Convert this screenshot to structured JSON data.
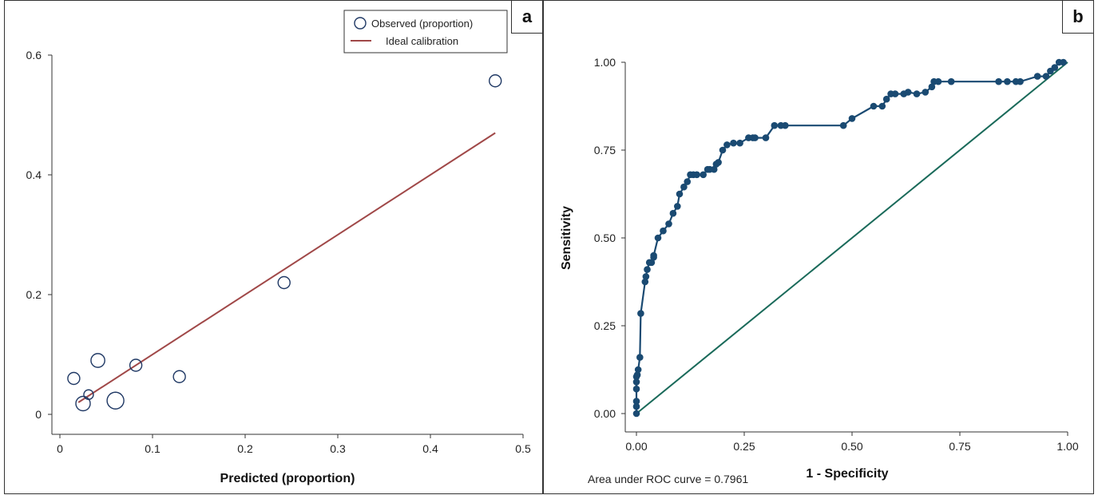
{
  "chart_data": [
    {
      "panel_label": "a",
      "type": "scatter",
      "title": "",
      "xlabel": "Predicted (proportion)",
      "ylabel": "",
      "xlim": [
        0,
        0.5
      ],
      "ylim": [
        0,
        0.6
      ],
      "x_ticks": [
        0,
        0.1,
        0.2,
        0.3,
        0.4,
        0.5
      ],
      "x_tick_labels": [
        "0",
        "0.1",
        "0.2",
        "0.3",
        "0.4",
        "0.5"
      ],
      "y_ticks": [
        0,
        0.2,
        0.4,
        0.6
      ],
      "y_tick_labels": [
        "0",
        "0.2",
        "0.4",
        "0.6"
      ],
      "grid": false,
      "legend": {
        "placement": "top-right",
        "entries": [
          "Observed (proportion)",
          "Ideal calibration"
        ]
      },
      "colors": {
        "marker": "#1f3864",
        "line": "#a04848"
      },
      "series": [
        {
          "name": "Observed (proportion)",
          "kind": "hollow-circle",
          "points": [
            {
              "x": 0.015,
              "y": 0.06,
              "size": 1.0
            },
            {
              "x": 0.025,
              "y": 0.018,
              "size": 1.2
            },
            {
              "x": 0.031,
              "y": 0.033,
              "size": 0.8
            },
            {
              "x": 0.041,
              "y": 0.09,
              "size": 1.15
            },
            {
              "x": 0.06,
              "y": 0.023,
              "size": 1.4
            },
            {
              "x": 0.082,
              "y": 0.082,
              "size": 1.0
            },
            {
              "x": 0.129,
              "y": 0.063,
              "size": 1.0
            },
            {
              "x": 0.242,
              "y": 0.22,
              "size": 1.0
            },
            {
              "x": 0.47,
              "y": 0.557,
              "size": 1.0
            }
          ]
        },
        {
          "name": "Ideal calibration",
          "kind": "line",
          "points": [
            {
              "x": 0.02,
              "y": 0.02
            },
            {
              "x": 0.47,
              "y": 0.47
            }
          ]
        }
      ]
    },
    {
      "panel_label": "b",
      "type": "line",
      "title": "",
      "xlabel": "1 - Specificity",
      "ylabel": "Sensitivity",
      "xlim": [
        0,
        1
      ],
      "ylim": [
        0,
        1
      ],
      "x_ticks": [
        0,
        0.25,
        0.5,
        0.75,
        1
      ],
      "x_tick_labels": [
        "0.00",
        "0.25",
        "0.50",
        "0.75",
        "1.00"
      ],
      "y_ticks": [
        0,
        0.25,
        0.5,
        0.75,
        1
      ],
      "y_tick_labels": [
        "0.00",
        "0.25",
        "0.50",
        "0.75",
        "1.00"
      ],
      "grid": false,
      "annotation": "Area under ROC curve = 0.7961",
      "colors": {
        "roc": "#1a4a72",
        "reference": "#1a6a5a"
      },
      "series": [
        {
          "kind": "roc",
          "x": [
            0.0,
            0.0,
            0.0,
            0.0,
            0.0,
            0.0,
            0.002,
            0.004,
            0.008,
            0.01,
            0.02,
            0.022,
            0.025,
            0.03,
            0.035,
            0.04,
            0.04,
            0.05,
            0.062,
            0.075,
            0.085,
            0.095,
            0.1,
            0.11,
            0.118,
            0.125,
            0.132,
            0.14,
            0.155,
            0.165,
            0.17,
            0.18,
            0.185,
            0.19,
            0.2,
            0.21,
            0.225,
            0.24,
            0.26,
            0.27,
            0.275,
            0.3,
            0.32,
            0.335,
            0.345,
            0.48,
            0.5,
            0.55,
            0.57,
            0.58,
            0.59,
            0.6,
            0.62,
            0.63,
            0.65,
            0.67,
            0.685,
            0.69,
            0.7,
            0.73,
            0.84,
            0.86,
            0.88,
            0.89,
            0.93,
            0.95,
            0.96,
            0.97,
            0.98,
            0.99
          ],
          "y": [
            0.0,
            0.02,
            0.035,
            0.07,
            0.09,
            0.105,
            0.11,
            0.125,
            0.16,
            0.285,
            0.375,
            0.39,
            0.41,
            0.43,
            0.43,
            0.445,
            0.45,
            0.5,
            0.52,
            0.54,
            0.57,
            0.59,
            0.625,
            0.645,
            0.66,
            0.68,
            0.68,
            0.68,
            0.68,
            0.695,
            0.695,
            0.695,
            0.71,
            0.715,
            0.75,
            0.765,
            0.77,
            0.77,
            0.785,
            0.785,
            0.785,
            0.785,
            0.82,
            0.82,
            0.82,
            0.82,
            0.84,
            0.875,
            0.875,
            0.895,
            0.91,
            0.91,
            0.91,
            0.915,
            0.91,
            0.915,
            0.93,
            0.945,
            0.945,
            0.945,
            0.945,
            0.945,
            0.945,
            0.945,
            0.96,
            0.96,
            0.975,
            0.985,
            1.0,
            1.0
          ]
        },
        {
          "kind": "reference",
          "x": [
            0,
            1
          ],
          "y": [
            0,
            1
          ]
        }
      ]
    }
  ]
}
